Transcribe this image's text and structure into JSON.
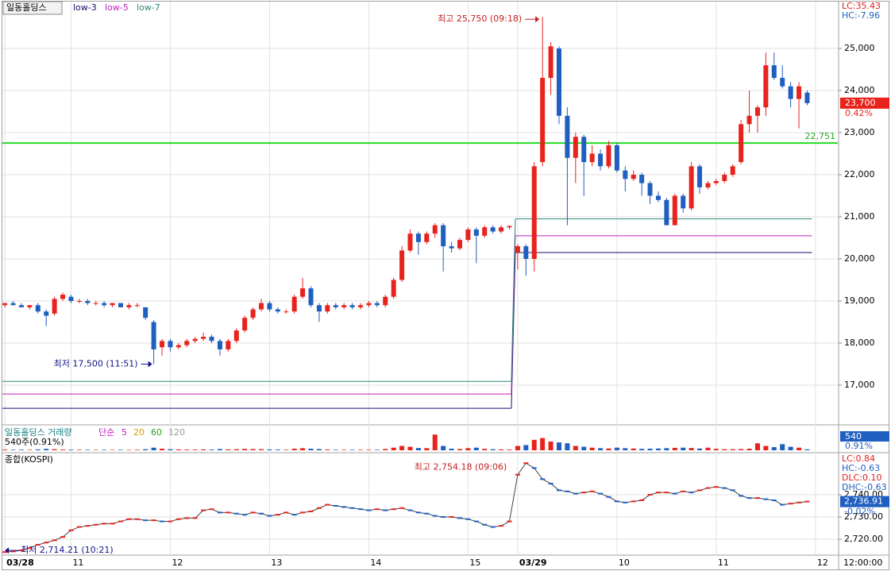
{
  "chart_data": [
    {
      "type": "candlestick",
      "title": "일동홀딩스",
      "up_color": "#e8221c",
      "down_color": "#1f5fc0",
      "ylim": [
        16094,
        26113
      ],
      "yticks": [
        {
          "value": 17000,
          "label": "17,000"
        },
        {
          "value": 18000,
          "label": "18,000"
        },
        {
          "value": 19000,
          "label": "19,000"
        },
        {
          "value": 20000,
          "label": "20,000"
        },
        {
          "value": 21000,
          "label": "21,000"
        },
        {
          "value": 22000,
          "label": "22,000"
        },
        {
          "value": 23000,
          "label": "23,000"
        },
        {
          "value": 24000,
          "label": "24,000"
        },
        {
          "value": 25000,
          "label": "25,000"
        }
      ],
      "xlim": [
        -0.3,
        100.7
      ],
      "xticks": [
        {
          "value": 0,
          "label": "03/28"
        },
        {
          "value": 8,
          "label": "11"
        },
        {
          "value": 20,
          "label": "12"
        },
        {
          "value": 32,
          "label": "13"
        },
        {
          "value": 44,
          "label": "14"
        },
        {
          "value": 56,
          "label": "15"
        },
        {
          "value": 62,
          "label": "03/29"
        },
        {
          "value": 74,
          "label": "10"
        },
        {
          "value": 86,
          "label": "11"
        },
        {
          "value": 98,
          "label": "12"
        }
      ],
      "time_label": "12:00:00",
      "grid": true,
      "low_lines": [
        {
          "name": "low-3",
          "color": "#10106e",
          "values": [
            16450,
            20150
          ]
        },
        {
          "name": "low-5",
          "color": "#c020c0",
          "values": [
            16790,
            20550
          ]
        },
        {
          "name": "low-7",
          "color": "#2a8a7a",
          "values": [
            17090,
            20950
          ]
        }
      ],
      "hline": {
        "value": 22751,
        "label": "22,751",
        "color": "#22dd22"
      },
      "annotations": {
        "max": "최고 25,750 (09:18)",
        "min": "최저 17,500 (11:51)"
      },
      "stats": [
        {
          "label": "LC:35.43",
          "color": "#e02020"
        },
        {
          "label": "HC:-7.96",
          "color": "#1f5fc0"
        }
      ],
      "price_tag": {
        "value": 23700,
        "label": "23,700",
        "change": "0.42%"
      },
      "ohlc": [
        [
          18900,
          18950,
          18850,
          18950
        ],
        [
          18950,
          19000,
          18900,
          18900
        ],
        [
          18900,
          18950,
          18850,
          18850
        ],
        [
          18850,
          18900,
          18800,
          18900
        ],
        [
          18900,
          18950,
          18700,
          18750
        ],
        [
          18750,
          18800,
          18400,
          18650
        ],
        [
          18700,
          19100,
          18650,
          19050
        ],
        [
          19050,
          19200,
          19000,
          19150
        ],
        [
          19100,
          19150,
          18950,
          19000
        ],
        [
          19000,
          19050,
          18950,
          19000
        ],
        [
          19000,
          19050,
          18900,
          18950
        ],
        [
          18950,
          19000,
          18900,
          18950
        ],
        [
          18950,
          19000,
          18850,
          18900
        ],
        [
          18900,
          18950,
          18850,
          18950
        ],
        [
          18950,
          18950,
          18850,
          18850
        ],
        [
          18850,
          18950,
          18800,
          18900
        ],
        [
          18900,
          18950,
          18850,
          18900
        ],
        [
          18850,
          18850,
          18550,
          18600
        ],
        [
          18500,
          18550,
          17500,
          17850
        ],
        [
          17900,
          18100,
          17700,
          18050
        ],
        [
          18050,
          18100,
          17800,
          17900
        ],
        [
          17900,
          18000,
          17850,
          17950
        ],
        [
          17950,
          18100,
          17900,
          18050
        ],
        [
          18050,
          18150,
          18000,
          18100
        ],
        [
          18100,
          18250,
          18050,
          18150
        ],
        [
          18150,
          18200,
          18000,
          18050
        ],
        [
          18050,
          18100,
          17700,
          17850
        ],
        [
          17850,
          18100,
          17800,
          18050
        ],
        [
          18050,
          18350,
          18000,
          18300
        ],
        [
          18300,
          18650,
          18250,
          18600
        ],
        [
          18600,
          18850,
          18550,
          18800
        ],
        [
          18800,
          19050,
          18750,
          18950
        ],
        [
          18950,
          19000,
          18750,
          18800
        ],
        [
          18800,
          18850,
          18700,
          18750
        ],
        [
          18750,
          18800,
          18700,
          18750
        ],
        [
          18750,
          19150,
          18700,
          19100
        ],
        [
          19100,
          19550,
          19050,
          19300
        ],
        [
          19300,
          19350,
          18850,
          18900
        ],
        [
          18900,
          18950,
          18500,
          18750
        ],
        [
          18750,
          18950,
          18700,
          18900
        ],
        [
          18900,
          18950,
          18800,
          18850
        ],
        [
          18850,
          18950,
          18800,
          18900
        ],
        [
          18900,
          18950,
          18800,
          18850
        ],
        [
          18850,
          18950,
          18800,
          18900
        ],
        [
          18900,
          19000,
          18850,
          18950
        ],
        [
          18950,
          19000,
          18850,
          18900
        ],
        [
          18900,
          19150,
          18850,
          19100
        ],
        [
          19100,
          19550,
          19050,
          19500
        ],
        [
          19500,
          20300,
          19450,
          20200
        ],
        [
          20200,
          20700,
          20150,
          20600
        ],
        [
          20600,
          20650,
          20100,
          20400
        ],
        [
          20400,
          20650,
          20350,
          20600
        ],
        [
          20600,
          20850,
          20500,
          20800
        ],
        [
          20800,
          20850,
          19700,
          20300
        ],
        [
          20300,
          20400,
          20150,
          20250
        ],
        [
          20250,
          20500,
          20200,
          20450
        ],
        [
          20450,
          20750,
          20400,
          20700
        ],
        [
          20700,
          20750,
          19900,
          20550
        ],
        [
          20550,
          20800,
          20500,
          20750
        ],
        [
          20750,
          20800,
          20600,
          20650
        ],
        [
          20650,
          20800,
          20600,
          20750
        ],
        [
          20750,
          20800,
          20700,
          20780
        ],
        [
          20150,
          20350,
          19750,
          20300
        ],
        [
          20300,
          20350,
          19600,
          20000
        ],
        [
          20000,
          22300,
          19700,
          22200
        ],
        [
          22300,
          25750,
          22200,
          24300
        ],
        [
          24300,
          25150,
          23900,
          25050
        ],
        [
          25000,
          25050,
          23200,
          23400
        ],
        [
          23400,
          23600,
          20800,
          22400
        ],
        [
          22400,
          23000,
          21800,
          22900
        ],
        [
          22900,
          22950,
          21500,
          22300
        ],
        [
          22300,
          22700,
          22200,
          22500
        ],
        [
          22500,
          22600,
          22100,
          22200
        ],
        [
          22200,
          22800,
          22150,
          22700
        ],
        [
          22700,
          22750,
          22050,
          22100
        ],
        [
          22100,
          22200,
          21600,
          21900
        ],
        [
          21900,
          22100,
          21850,
          22000
        ],
        [
          22000,
          22050,
          21500,
          21800
        ],
        [
          21800,
          21850,
          21300,
          21500
        ],
        [
          21500,
          21600,
          21350,
          21400
        ],
        [
          21400,
          21450,
          20800,
          20800
        ],
        [
          20800,
          21550,
          20800,
          21500
        ],
        [
          21500,
          21550,
          21100,
          21200
        ],
        [
          21200,
          22300,
          21150,
          22200
        ],
        [
          22200,
          22250,
          21550,
          21700
        ],
        [
          21700,
          21850,
          21650,
          21800
        ],
        [
          21800,
          21900,
          21750,
          21850
        ],
        [
          21850,
          22050,
          21800,
          22000
        ],
        [
          22000,
          22250,
          21950,
          22200
        ],
        [
          22300,
          23300,
          22250,
          23200
        ],
        [
          23200,
          24000,
          23000,
          23400
        ],
        [
          23400,
          23650,
          23000,
          23600
        ],
        [
          23600,
          24900,
          23400,
          24600
        ],
        [
          24600,
          24900,
          24250,
          24300
        ],
        [
          24300,
          24600,
          24050,
          24100
        ],
        [
          24100,
          24200,
          23600,
          23800
        ],
        [
          23800,
          24200,
          23100,
          24100
        ],
        [
          23950,
          24000,
          23650,
          23700
        ]
      ]
    },
    {
      "type": "bar",
      "title": "일동홀딩스 거래량",
      "ma_label": "단순",
      "ma_periods": [
        5,
        20,
        60,
        120
      ],
      "ma_colors": [
        "#c020c0",
        "#d4a000",
        "#2a9d2a",
        "#999999"
      ],
      "subtitle": "540주(0.91%)",
      "tag_value": 540,
      "tag_change": "0.91%",
      "ylim": [
        0,
        10000
      ],
      "values": [
        400,
        300,
        350,
        300,
        500,
        800,
        600,
        400,
        350,
        300,
        300,
        250,
        300,
        250,
        300,
        250,
        300,
        600,
        1500,
        900,
        600,
        500,
        400,
        400,
        500,
        400,
        700,
        500,
        600,
        800,
        700,
        600,
        500,
        400,
        300,
        900,
        1200,
        900,
        700,
        400,
        300,
        300,
        300,
        300,
        300,
        300,
        700,
        1500,
        2500,
        2000,
        1300,
        1200,
        9000,
        2500,
        900,
        700,
        1200,
        1500,
        800,
        600,
        500,
        400,
        2500,
        3000,
        6000,
        7000,
        5000,
        4500,
        4000,
        2500,
        2000,
        1500,
        1200,
        1000,
        1500,
        1200,
        1000,
        800,
        900,
        1000,
        1200,
        1400,
        1500,
        1300,
        1000,
        1500,
        800,
        600,
        600,
        700,
        900,
        4000,
        2500,
        1800,
        3500,
        2000,
        1500,
        540
      ]
    },
    {
      "type": "line",
      "title": "종합(KOSPI)",
      "color": "#444444",
      "ylim": [
        2713.2,
        2758.2
      ],
      "yticks": [
        {
          "value": 2720,
          "label": "2,720.00"
        },
        {
          "value": 2730,
          "label": "2,730.00"
        },
        {
          "value": 2740,
          "label": "2,740.00"
        }
      ],
      "annotations": {
        "max": "최고 2,754.18 (09:06)",
        "min": "최저 2,714.21 (10:21)"
      },
      "stats": [
        {
          "label": "LC:0.84",
          "color": "#e02020"
        },
        {
          "label": "HC:-0.63",
          "color": "#1f5fc0"
        },
        {
          "label": "DLC:0.10",
          "color": "#e02020"
        },
        {
          "label": "DHC:-0.63",
          "color": "#1f5fc0"
        }
      ],
      "tag": {
        "value": 2736.91,
        "label": "2,736.91",
        "change": "-0.02%"
      },
      "values": [
        2714.21,
        2714.5,
        2715,
        2716,
        2717.5,
        2718.5,
        2719.5,
        2721,
        2724,
        2725.5,
        2726,
        2726.5,
        2727,
        2727,
        2728,
        2729,
        2729,
        2728.5,
        2728.5,
        2728,
        2728,
        2729,
        2729.5,
        2729.5,
        2733,
        2733.5,
        2732,
        2732,
        2731.5,
        2731,
        2732,
        2731.5,
        2730.5,
        2731,
        2732,
        2731,
        2732,
        2732.5,
        2734,
        2735.5,
        2735,
        2734.5,
        2734,
        2733.5,
        2733,
        2733.5,
        2733,
        2733.5,
        2734,
        2733,
        2732,
        2731.5,
        2730.5,
        2730,
        2730,
        2729.5,
        2729,
        2728,
        2726.5,
        2725.5,
        2726,
        2728,
        2749,
        2754.18,
        2752,
        2747,
        2745,
        2742,
        2741.5,
        2740.5,
        2741,
        2741.5,
        2740.5,
        2739,
        2737,
        2736.5,
        2737,
        2737.5,
        2740,
        2741,
        2741,
        2740.5,
        2741.5,
        2741,
        2742,
        2743,
        2743.5,
        2743,
        2742,
        2739.5,
        2738.5,
        2738.5,
        2738,
        2737.5,
        2735.5,
        2736,
        2736.5,
        2736.91
      ]
    }
  ]
}
